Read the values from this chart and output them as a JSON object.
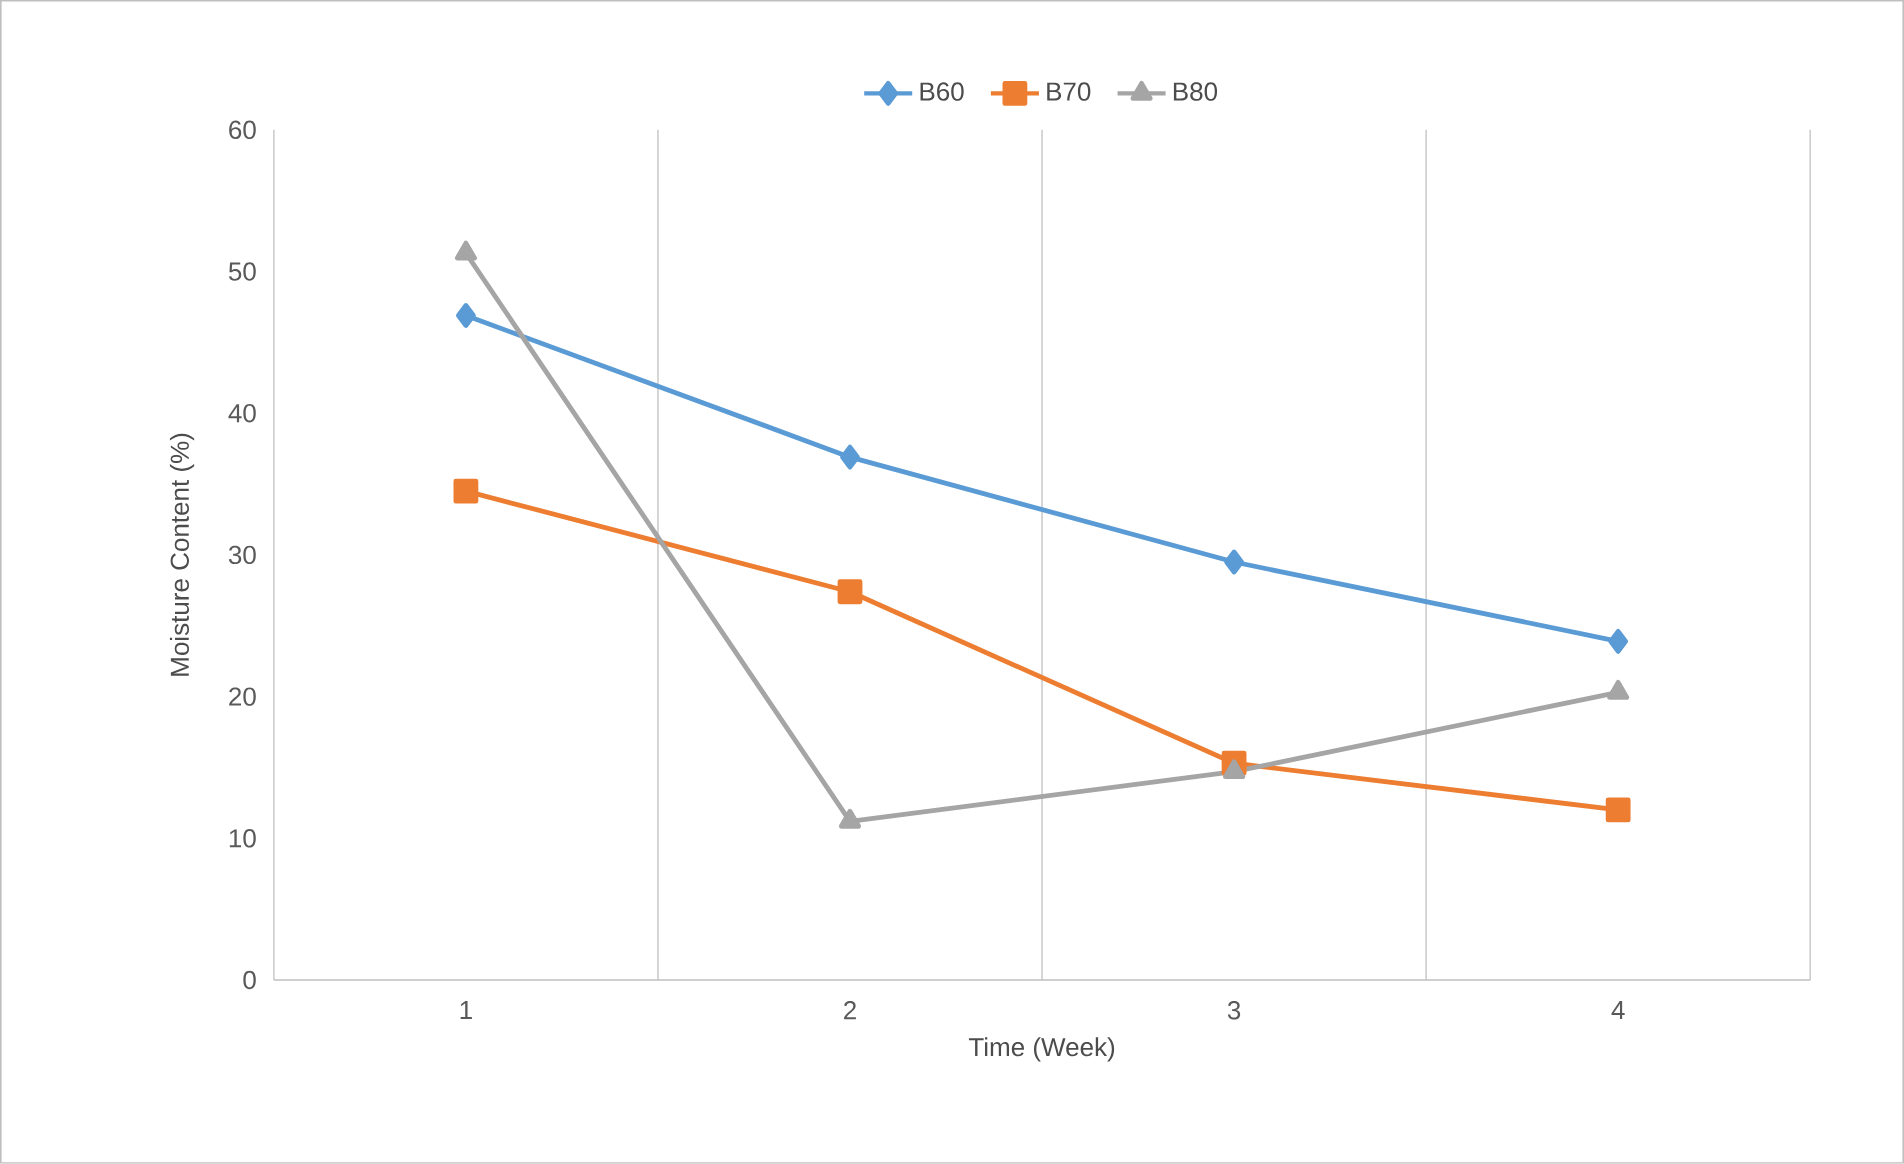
{
  "chart_data": {
    "type": "line",
    "xlabel": "Time (Week)",
    "ylabel": "Moisture Content (%)",
    "categories": [
      "1",
      "2",
      "3",
      "4"
    ],
    "series": [
      {
        "name": "B60",
        "color": "#5b9bd5",
        "marker": "diamond",
        "values": [
          46.9,
          36.9,
          29.5,
          23.9
        ]
      },
      {
        "name": "B70",
        "color": "#ed7d31",
        "marker": "square",
        "values": [
          34.5,
          27.4,
          15.3,
          12.0
        ]
      },
      {
        "name": "B80",
        "color": "#a5a5a5",
        "marker": "triangle",
        "values": [
          51.3,
          11.2,
          14.7,
          20.3
        ]
      }
    ],
    "ylim": [
      0,
      60
    ],
    "yticks": [
      0,
      10,
      20,
      30,
      40,
      50,
      60
    ],
    "grid": "x",
    "legend": "top"
  }
}
